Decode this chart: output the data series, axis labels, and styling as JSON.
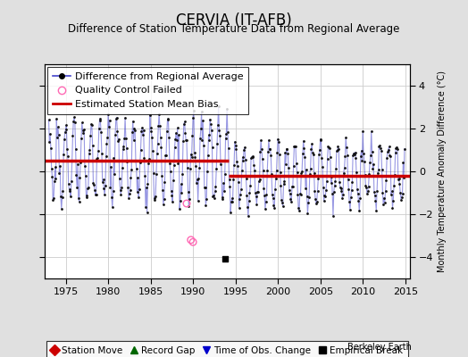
{
  "title": "CERVIA (IT-AFB)",
  "subtitle": "Difference of Station Temperature Data from Regional Average",
  "ylabel": "Monthly Temperature Anomaly Difference (°C)",
  "xlim": [
    1972.5,
    2015.5
  ],
  "ylim": [
    -5,
    5
  ],
  "yticks": [
    -4,
    -2,
    0,
    2,
    4
  ],
  "xticks": [
    1975,
    1980,
    1985,
    1990,
    1995,
    2000,
    2005,
    2010,
    2015
  ],
  "bias1_start": 1972.5,
  "bias1_end": 1994.2,
  "bias1_value": 0.5,
  "bias2_start": 1994.2,
  "bias2_end": 2015.5,
  "bias2_value": -0.2,
  "empirical_break_year": 1993.75,
  "empirical_break_value": -4.1,
  "qc_fail_years": [
    1989.25,
    1989.75,
    1990.0
  ],
  "qc_fail_values": [
    -1.5,
    -3.2,
    -3.3
  ],
  "line_color": "#4444cc",
  "line_alpha": 0.55,
  "dot_color": "#111111",
  "bias_color": "#cc0000",
  "bg_color": "#e0e0e0",
  "plot_bg_color": "#ffffff",
  "title_fontsize": 12,
  "subtitle_fontsize": 8.5,
  "tick_fontsize": 8,
  "legend_fontsize": 8,
  "seed": 17
}
